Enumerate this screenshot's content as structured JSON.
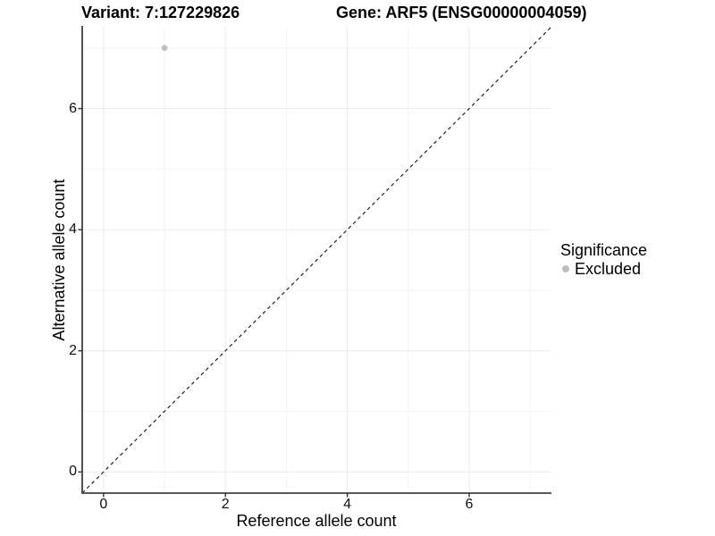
{
  "titles": {
    "variant": "Variant: 7:127229826",
    "gene": "Gene: ARF5 (ENSG00000004059)"
  },
  "legend": {
    "title": "Significance",
    "items": [
      {
        "label": "Excluded",
        "color": "#bebebe"
      }
    ]
  },
  "chart_data": {
    "type": "scatter",
    "title_left": "Variant: 7:127229826",
    "title_right": "Gene: ARF5 (ENSG00000004059)",
    "xlabel": "Reference allele count",
    "ylabel": "Alternative allele count",
    "xlim": [
      -0.35,
      7.35
    ],
    "ylim": [
      -0.35,
      7.35
    ],
    "xticks": [
      0,
      2,
      4,
      6
    ],
    "yticks": [
      0,
      2,
      4,
      6
    ],
    "grid_x_major": [
      0,
      2,
      4,
      6
    ],
    "grid_x_minor": [
      1,
      3,
      5,
      7
    ],
    "grid_y_major": [
      0,
      2,
      4,
      6
    ],
    "grid_y_minor": [
      1,
      3,
      5,
      7
    ],
    "series": [
      {
        "name": "Excluded",
        "color": "#bebebe",
        "points": [
          {
            "x": 1,
            "y": 7
          }
        ]
      }
    ],
    "reference_line": {
      "slope": 1,
      "intercept": 0,
      "linetype": "dashed"
    },
    "legend_title": "Significance",
    "legend_position": "right",
    "grid": true
  },
  "colors": {
    "point": "#bebebe",
    "grid_major": "#ebebeb",
    "grid_minor": "#f4f4f4",
    "axis_line_left": "#262626",
    "axis_line_bottom": "#595959",
    "tick_mark": "#333333",
    "reference_line": "#111111",
    "text": "#000000"
  }
}
